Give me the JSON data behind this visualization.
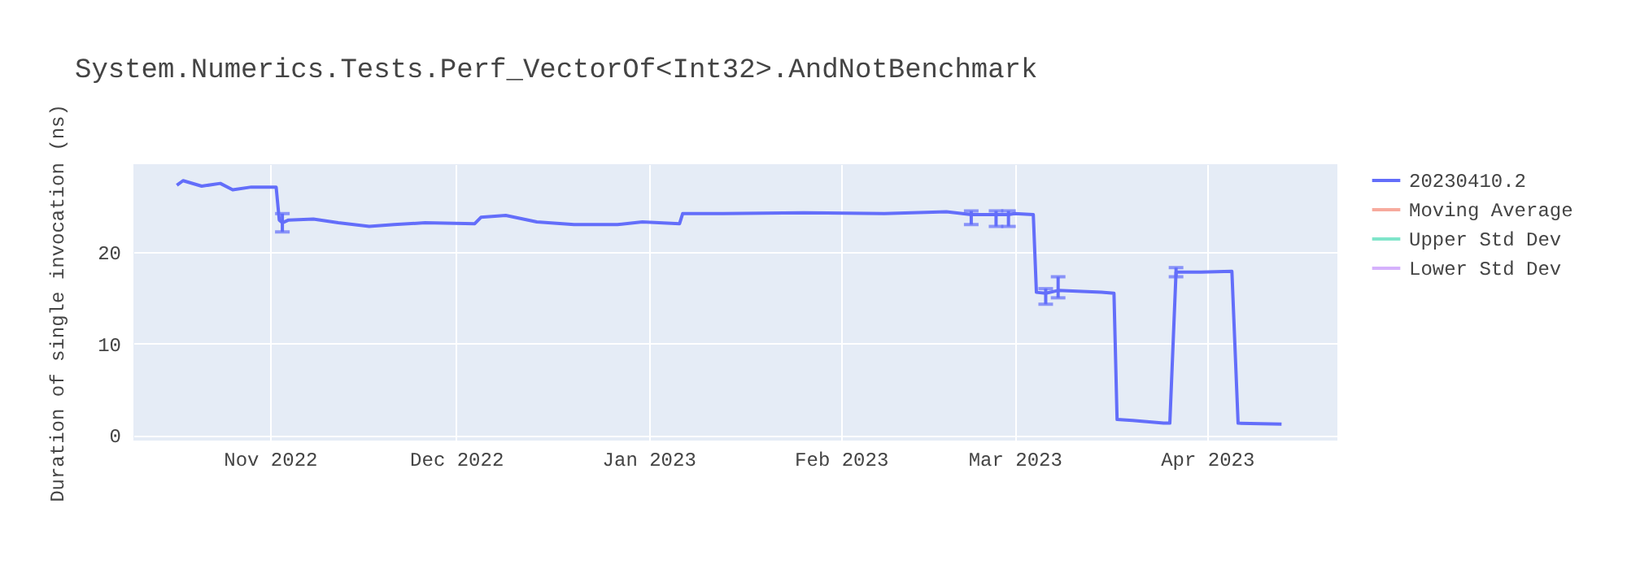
{
  "chart_data": {
    "type": "line",
    "title": "System.Numerics.Tests.Perf_VectorOf<Int32>.AndNotBenchmark",
    "ylabel": "Duration of single invocation (ns)",
    "xlim": [
      "2022-10-10",
      "2023-04-22"
    ],
    "ylim": [
      -0.6,
      29.6
    ],
    "xticks": [
      {
        "value": "2022-11-01",
        "label": "Nov 2022"
      },
      {
        "value": "2022-12-01",
        "label": "Dec 2022"
      },
      {
        "value": "2023-01-01",
        "label": "Jan 2023"
      },
      {
        "value": "2023-02-01",
        "label": "Feb 2023"
      },
      {
        "value": "2023-03-01",
        "label": "Mar 2023"
      },
      {
        "value": "2023-04-01",
        "label": "Apr 2023"
      }
    ],
    "yticks": [
      0,
      10,
      20
    ],
    "grid": true,
    "legend": "top right",
    "marker": "none",
    "line_style": "solid",
    "series": [
      {
        "name": "20230410.2",
        "color": "#636efa",
        "x": [
          "2022-10-17",
          "2022-10-18",
          "2022-10-21",
          "2022-10-24",
          "2022-10-26",
          "2022-10-29",
          "2022-11-02",
          "2022-11-02T12:00",
          "2022-11-03",
          "2022-11-04",
          "2022-11-08",
          "2022-11-12",
          "2022-11-17",
          "2022-11-21",
          "2022-11-26",
          "2022-12-04",
          "2022-12-05",
          "2022-12-09",
          "2022-12-14",
          "2022-12-20",
          "2022-12-27",
          "2022-12-31",
          "2023-01-06",
          "2023-01-06T12:00",
          "2023-01-13",
          "2023-01-26",
          "2023-02-08",
          "2023-02-18",
          "2023-02-22",
          "2023-02-26",
          "2023-02-28",
          "2023-03-01",
          "2023-03-04",
          "2023-03-04T12:00",
          "2023-03-06",
          "2023-03-08",
          "2023-03-15",
          "2023-03-17",
          "2023-03-17T12:00",
          "2023-03-20",
          "2023-03-25",
          "2023-03-26",
          "2023-03-27",
          "2023-03-31",
          "2023-04-05",
          "2023-04-06",
          "2023-04-13"
        ],
        "values": [
          27.3,
          27.8,
          27.2,
          27.5,
          26.8,
          27.1,
          27.1,
          23.5,
          23.2,
          23.5,
          23.6,
          23.2,
          22.8,
          23.0,
          23.2,
          23.1,
          23.8,
          24.0,
          23.3,
          23.0,
          23.0,
          23.3,
          23.1,
          24.2,
          24.2,
          24.3,
          24.2,
          24.4,
          24.1,
          24.1,
          24.1,
          24.2,
          24.1,
          15.6,
          15.5,
          15.8,
          15.6,
          15.5,
          1.7,
          1.6,
          1.3,
          1.3,
          17.8,
          17.8,
          17.9,
          1.3,
          1.2
        ],
        "errors": [
          null,
          null,
          null,
          null,
          null,
          null,
          null,
          null,
          [
            22.2,
            24.2
          ],
          null,
          null,
          null,
          null,
          null,
          null,
          null,
          null,
          null,
          null,
          null,
          null,
          null,
          null,
          null,
          null,
          null,
          null,
          null,
          [
            23.0,
            24.5
          ],
          [
            22.8,
            24.5
          ],
          [
            22.8,
            24.5
          ],
          null,
          null,
          null,
          [
            14.3,
            16.0
          ],
          [
            15.0,
            17.3
          ],
          null,
          null,
          null,
          null,
          null,
          null,
          [
            17.3,
            18.3
          ],
          null,
          null,
          null,
          null
        ]
      },
      {
        "name": "Moving Average",
        "color": "#f7aa9d"
      },
      {
        "name": "Upper Std Dev",
        "color": "#7fe5ca"
      },
      {
        "name": "Lower Std Dev",
        "color": "#d5b1fc"
      }
    ]
  }
}
